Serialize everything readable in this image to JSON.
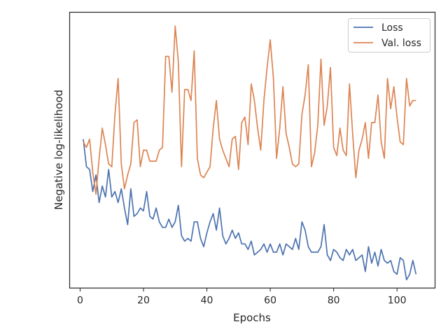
{
  "chart_data": {
    "type": "line",
    "title": "",
    "xlabel": "Epochs",
    "ylabel": "Negative log-likelihood",
    "xlim": [
      -3.3,
      112
    ],
    "ylim": [
      0.0,
      1.0
    ],
    "xticks": [
      0,
      20,
      40,
      60,
      80,
      100
    ],
    "yticks_shown": false,
    "grid": false,
    "legend": "top-right",
    "series": [
      {
        "name": "Loss",
        "color": "#4c72b0",
        "x": [
          1,
          2,
          3,
          4,
          5,
          6,
          7,
          8,
          9,
          10,
          11,
          12,
          13,
          14,
          15,
          16,
          17,
          18,
          19,
          20,
          21,
          22,
          23,
          24,
          25,
          26,
          27,
          28,
          29,
          30,
          31,
          32,
          33,
          34,
          35,
          36,
          37,
          38,
          39,
          40,
          41,
          42,
          43,
          44,
          45,
          46,
          47,
          48,
          49,
          50,
          51,
          52,
          53,
          54,
          55,
          56,
          57,
          58,
          59,
          60,
          61,
          62,
          63,
          64,
          65,
          66,
          67,
          68,
          69,
          70,
          71,
          72,
          73,
          74,
          75,
          76,
          77,
          78,
          79,
          80,
          81,
          82,
          83,
          84,
          85,
          86,
          87,
          88,
          89,
          90,
          91,
          92,
          93,
          94,
          95,
          96,
          97,
          98,
          99,
          100,
          101,
          102,
          103,
          104,
          105,
          106
        ],
        "y": [
          0.54,
          0.44,
          0.43,
          0.35,
          0.41,
          0.31,
          0.37,
          0.33,
          0.43,
          0.33,
          0.35,
          0.31,
          0.36,
          0.29,
          0.23,
          0.36,
          0.26,
          0.27,
          0.29,
          0.28,
          0.35,
          0.26,
          0.25,
          0.29,
          0.24,
          0.22,
          0.22,
          0.25,
          0.22,
          0.24,
          0.3,
          0.19,
          0.17,
          0.18,
          0.17,
          0.24,
          0.24,
          0.18,
          0.15,
          0.2,
          0.24,
          0.27,
          0.21,
          0.29,
          0.19,
          0.16,
          0.18,
          0.21,
          0.18,
          0.2,
          0.16,
          0.16,
          0.14,
          0.17,
          0.12,
          0.13,
          0.14,
          0.16,
          0.13,
          0.16,
          0.13,
          0.13,
          0.16,
          0.12,
          0.16,
          0.15,
          0.14,
          0.18,
          0.14,
          0.24,
          0.21,
          0.15,
          0.13,
          0.13,
          0.13,
          0.15,
          0.23,
          0.12,
          0.1,
          0.14,
          0.13,
          0.11,
          0.1,
          0.14,
          0.12,
          0.14,
          0.1,
          0.11,
          0.12,
          0.06,
          0.15,
          0.09,
          0.13,
          0.08,
          0.14,
          0.1,
          0.09,
          0.1,
          0.06,
          0.05,
          0.11,
          0.1,
          0.03,
          0.05,
          0.1,
          0.05
        ]
      },
      {
        "name": "Val. loss",
        "color": "#dd8452",
        "x": [
          1,
          2,
          3,
          4,
          5,
          6,
          7,
          8,
          9,
          10,
          11,
          12,
          13,
          14,
          15,
          16,
          17,
          18,
          19,
          20,
          21,
          22,
          23,
          24,
          25,
          26,
          27,
          28,
          29,
          30,
          31,
          32,
          33,
          34,
          35,
          36,
          37,
          38,
          39,
          40,
          41,
          42,
          43,
          44,
          45,
          46,
          47,
          48,
          49,
          50,
          51,
          52,
          53,
          54,
          55,
          56,
          57,
          58,
          59,
          60,
          61,
          62,
          63,
          64,
          65,
          66,
          67,
          68,
          69,
          70,
          71,
          72,
          73,
          74,
          75,
          76,
          77,
          78,
          79,
          80,
          81,
          82,
          83,
          84,
          85,
          86,
          87,
          88,
          89,
          90,
          91,
          92,
          93,
          94,
          95,
          96,
          97,
          98,
          99,
          100,
          101,
          102,
          103,
          104,
          105,
          106
        ],
        "y": [
          0.53,
          0.51,
          0.54,
          0.42,
          0.34,
          0.47,
          0.58,
          0.52,
          0.45,
          0.44,
          0.63,
          0.76,
          0.45,
          0.36,
          0.41,
          0.45,
          0.6,
          0.61,
          0.44,
          0.5,
          0.5,
          0.46,
          0.46,
          0.46,
          0.5,
          0.51,
          0.84,
          0.84,
          0.71,
          0.95,
          0.82,
          0.44,
          0.72,
          0.72,
          0.68,
          0.86,
          0.47,
          0.41,
          0.4,
          0.42,
          0.44,
          0.58,
          0.68,
          0.54,
          0.5,
          0.47,
          0.44,
          0.54,
          0.55,
          0.43,
          0.6,
          0.62,
          0.52,
          0.74,
          0.68,
          0.58,
          0.5,
          0.68,
          0.8,
          0.9,
          0.76,
          0.47,
          0.58,
          0.73,
          0.56,
          0.51,
          0.45,
          0.44,
          0.45,
          0.63,
          0.7,
          0.81,
          0.44,
          0.49,
          0.59,
          0.83,
          0.59,
          0.66,
          0.8,
          0.51,
          0.48,
          0.58,
          0.5,
          0.48,
          0.74,
          0.56,
          0.4,
          0.5,
          0.54,
          0.6,
          0.47,
          0.6,
          0.6,
          0.7,
          0.53,
          0.47,
          0.76,
          0.65,
          0.73,
          0.62,
          0.53,
          0.52,
          0.76,
          0.66,
          0.68,
          0.68
        ]
      }
    ]
  }
}
